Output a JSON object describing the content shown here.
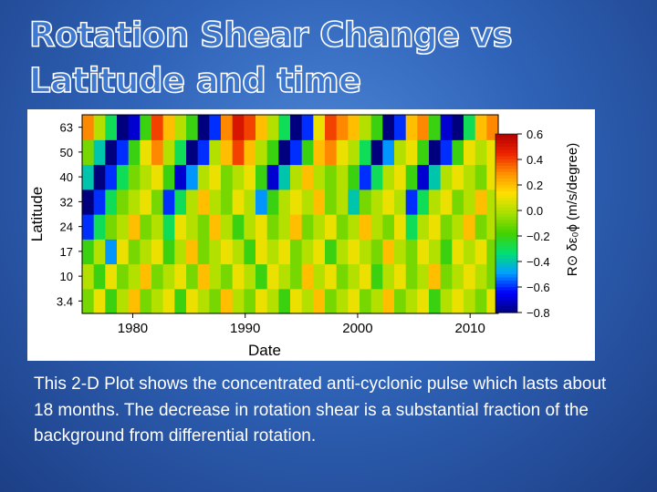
{
  "slide": {
    "title": "Rotation Shear Change vs Latitude and time",
    "caption": "This 2-D Plot shows the concentrated anti-cyclonic pulse which lasts about 18 months.  The decrease in rotation shear is a substantial fraction of the background from differential rotation."
  },
  "chart_data": {
    "type": "heatmap",
    "xlabel": "Date",
    "ylabel": "Latitude",
    "colorbar_label": "R⊙ δε₀ϕ   (m/s/degree)",
    "xlim": [
      1975.5,
      2012.5
    ],
    "x_ticks": [
      1980,
      1990,
      2000,
      2010
    ],
    "x_tick_labels": [
      "1980",
      "1990",
      "2000",
      "2010"
    ],
    "y_tick_labels": [
      "3.4",
      "10",
      "17",
      "24",
      "32",
      "40",
      "50",
      "63"
    ],
    "color_range": [
      -0.8,
      0.6
    ],
    "colorbar_ticks": [
      0.6,
      0.4,
      0.2,
      0.0,
      -0.2,
      -0.4,
      -0.6,
      -0.8
    ],
    "colorbar_tick_labels": [
      "0.6",
      "0.4",
      "0.2",
      "0.0",
      "−0.2",
      "−0.4",
      "−0.6",
      "−0.8"
    ],
    "colormap": [
      "#00007f",
      "#0000ff",
      "#00a0ff",
      "#00e070",
      "#44d000",
      "#a8e000",
      "#ffe000",
      "#ff9000",
      "#ee2200",
      "#b00000"
    ],
    "grid_dates": [
      1976.5,
      1977.5,
      1978.5,
      1979.5,
      1980.5,
      1981.5,
      1982.5,
      1983.5,
      1984.5,
      1985.5,
      1986.5,
      1987.5,
      1988.5,
      1989.5,
      1990.5,
      1991.5,
      1992.5,
      1993.5,
      1994.5,
      1995.5,
      1996.5,
      1997.5,
      1998.5,
      1999.5,
      2000.5,
      2001.5,
      2002.5,
      2003.5,
      2004.5,
      2005.5,
      2006.5,
      2007.5,
      2008.5,
      2009.5,
      2010.5,
      2011.5
    ],
    "values": [
      [
        -0.1,
        0.1,
        -0.2,
        0.0,
        0.2,
        -0.1,
        0.0,
        0.1,
        -0.2,
        0.1,
        0.0,
        -0.1,
        0.2,
        0.0,
        -0.1,
        0.1,
        0.0,
        -0.2,
        0.1,
        0.0,
        0.2,
        -0.1,
        0.0,
        0.1,
        -0.1,
        0.0,
        0.2,
        -0.1,
        0.0,
        0.1,
        -0.2,
        0.0,
        0.1,
        0.0,
        -0.1,
        0.1
      ],
      [
        0.0,
        -0.2,
        0.1,
        -0.1,
        0.0,
        0.2,
        -0.1,
        0.0,
        0.1,
        -0.1,
        0.2,
        0.0,
        -0.1,
        0.1,
        0.0,
        -0.2,
        0.1,
        0.0,
        -0.1,
        0.2,
        0.0,
        0.1,
        -0.1,
        0.0,
        0.1,
        -0.2,
        0.0,
        0.1,
        -0.1,
        0.0,
        0.2,
        -0.1,
        0.0,
        0.1,
        0.0,
        -0.1
      ],
      [
        -0.2,
        0.0,
        -0.5,
        0.1,
        -0.1,
        0.0,
        0.1,
        -0.2,
        0.0,
        0.2,
        -0.1,
        0.0,
        0.1,
        0.0,
        -0.2,
        0.1,
        0.0,
        0.1,
        -0.1,
        0.0,
        0.1,
        -0.2,
        0.0,
        0.1,
        0.0,
        -0.1,
        0.2,
        0.0,
        -0.1,
        0.1,
        0.0,
        -0.2,
        0.1,
        0.0,
        0.1,
        -0.1
      ],
      [
        -0.6,
        -0.3,
        -0.1,
        0.0,
        0.2,
        -0.1,
        0.0,
        -0.3,
        0.1,
        0.0,
        -0.1,
        0.2,
        0.0,
        -0.2,
        0.0,
        0.1,
        -0.1,
        0.0,
        0.2,
        -0.1,
        0.0,
        0.1,
        -0.1,
        0.0,
        0.2,
        0.0,
        -0.1,
        0.1,
        -0.3,
        0.0,
        0.1,
        -0.1,
        0.0,
        0.2,
        -0.1,
        0.0
      ],
      [
        -0.8,
        -0.6,
        -0.3,
        -0.1,
        0.0,
        0.1,
        -0.1,
        -0.6,
        -0.3,
        0.0,
        0.2,
        0.0,
        -0.1,
        0.1,
        0.0,
        -0.5,
        -0.2,
        0.0,
        0.1,
        0.0,
        0.2,
        -0.1,
        0.0,
        -0.4,
        -0.1,
        0.0,
        0.1,
        0.0,
        -0.6,
        -0.3,
        0.0,
        0.1,
        -0.1,
        0.0,
        0.2,
        0.0
      ],
      [
        -0.4,
        -0.8,
        -0.6,
        -0.3,
        -0.1,
        0.0,
        0.1,
        -0.2,
        -0.7,
        -0.5,
        0.0,
        0.1,
        -0.1,
        0.0,
        0.1,
        -0.2,
        -0.7,
        -0.4,
        0.0,
        0.2,
        0.0,
        -0.1,
        0.0,
        -0.2,
        -0.6,
        -0.3,
        0.0,
        0.1,
        -0.2,
        -0.7,
        -0.4,
        0.0,
        0.1,
        0.0,
        -0.1,
        0.1
      ],
      [
        -0.1,
        -0.4,
        -0.8,
        -0.6,
        -0.2,
        0.1,
        0.3,
        0.0,
        -0.3,
        -0.8,
        -0.6,
        0.0,
        0.2,
        0.4,
        0.2,
        0.0,
        -0.2,
        -0.8,
        -0.6,
        -0.2,
        0.2,
        0.3,
        0.1,
        0.0,
        -0.3,
        -0.8,
        -0.5,
        0.0,
        0.1,
        -0.2,
        -0.8,
        -0.6,
        -0.2,
        0.1,
        0.0,
        0.1
      ],
      [
        0.3,
        0.0,
        -0.3,
        -0.8,
        -0.7,
        -0.2,
        0.4,
        0.2,
        0.0,
        -0.2,
        -0.8,
        -0.6,
        0.3,
        0.5,
        0.4,
        0.2,
        0.0,
        -0.3,
        -0.8,
        -0.6,
        0.1,
        0.4,
        0.3,
        0.2,
        0.0,
        -0.2,
        -0.8,
        -0.6,
        0.2,
        0.3,
        -0.2,
        -0.7,
        -0.8,
        -0.3,
        0.2,
        0.3
      ]
    ]
  }
}
